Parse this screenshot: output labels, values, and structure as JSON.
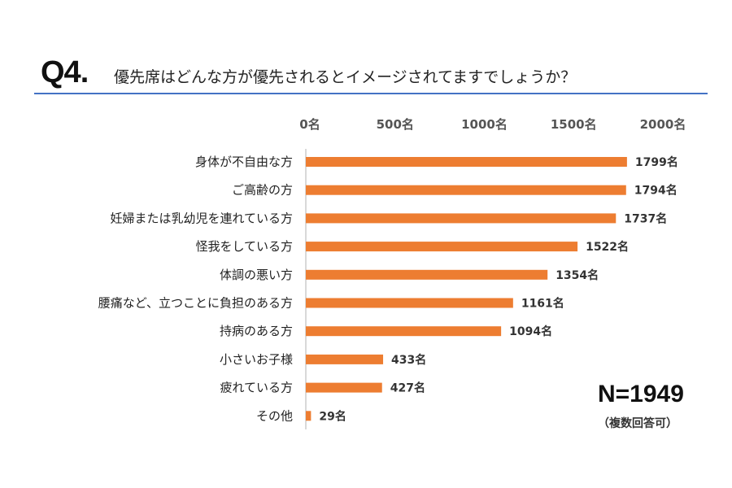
{
  "question_no": "Q4.",
  "chart_data": {
    "type": "bar",
    "orientation": "horizontal",
    "title": "優先席はどんな方が優先されるとイメージされてますでしょうか？",
    "categories": [
      "身体が不自由な方",
      "ご高齢の方",
      "妊婦または乳幼児を連れている方",
      "怪我をしている方",
      "体調の悪い方",
      "腰痛など、立つことに負担のある方",
      "持病のある方",
      "小さいお子様",
      "疲れている方",
      "その他"
    ],
    "values": [
      1799,
      1794,
      1737,
      1522,
      1354,
      1161,
      1094,
      433,
      427,
      29
    ],
    "value_suffix": "名",
    "xlim": [
      0,
      2000
    ],
    "ticks": [
      0,
      500,
      1000,
      1500,
      2000
    ],
    "tick_labels": [
      "0名",
      "500名",
      "1000名",
      "1500名",
      "2000名"
    ],
    "axis_position": "top",
    "grid": false,
    "bar_color": "#ed7d31",
    "annotation": "N=1949",
    "annotation_note": "（複数回答可）"
  },
  "colors": {
    "rule": "#4472c4",
    "bar": "#ed7d31"
  }
}
